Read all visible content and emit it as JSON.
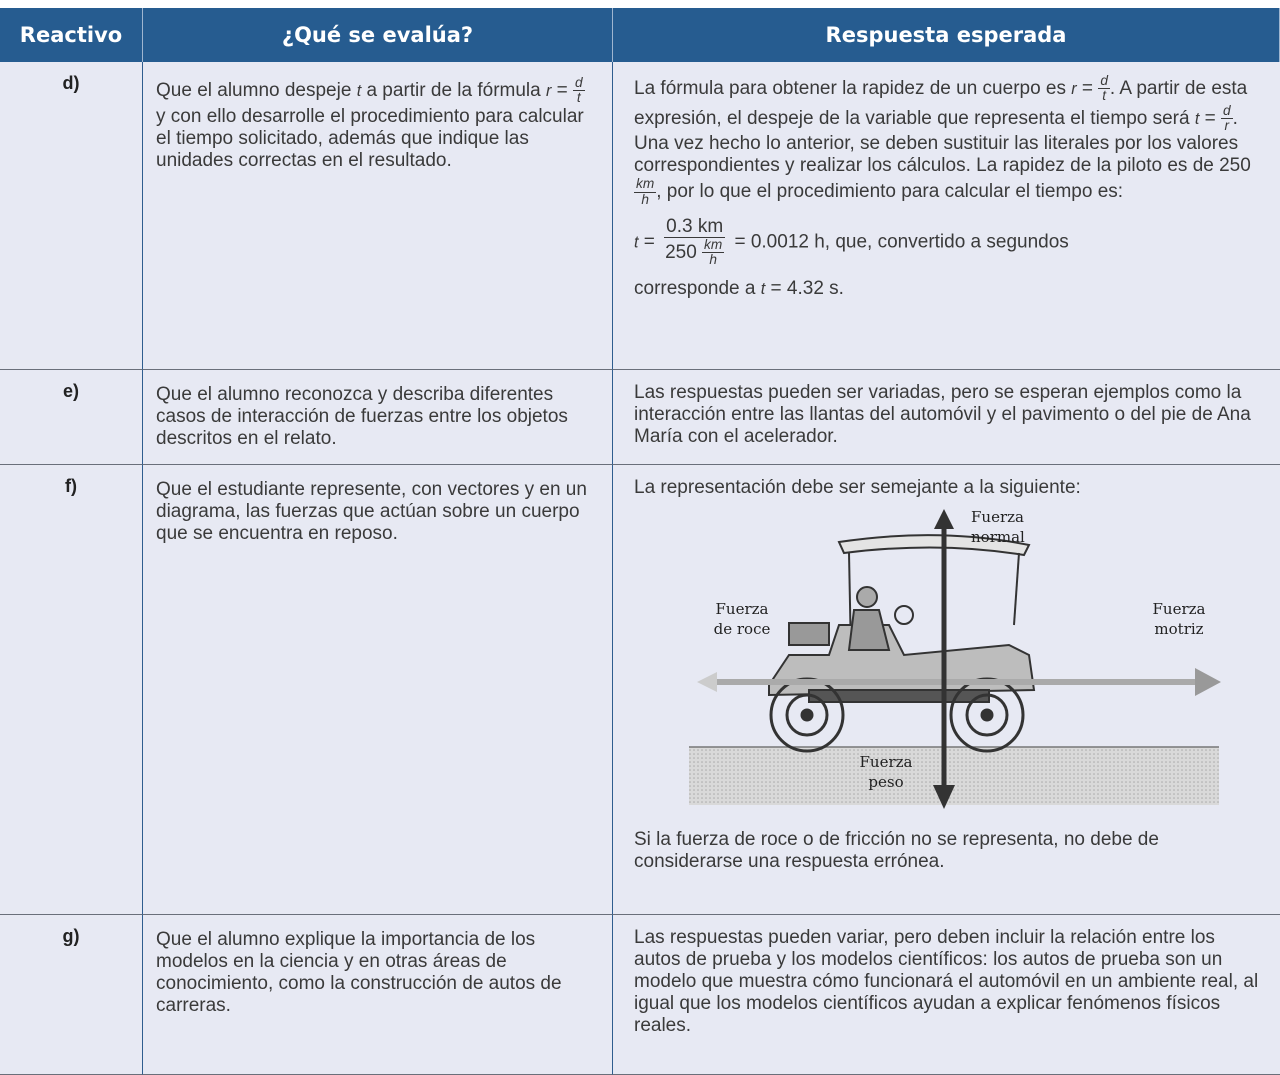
{
  "table": {
    "headers": [
      "Reactivo",
      "¿Qué se evalúa?",
      "Respuesta esperada"
    ],
    "rows": [
      {
        "id": "d)",
        "evaluates": [
          [
            "Que el alumno despeje ",
            {
              "i": "t"
            },
            " a partir de la fórmula ",
            {
              "i": "r"
            },
            " = ",
            {
              "num": "d",
              "den": "t"
            },
            " y con ello desarrolle el procedimiento para calcular el tiempo solicitado, además que indique las unidades correctas en  el resultado."
          ]
        ],
        "answer": [
          [
            "La fórmula para obtener la rapidez de un cuerpo es ",
            {
              "i": "r"
            },
            " = ",
            {
              "num": "d",
              "den": "t"
            },
            ". A partir de esta expresión, el despeje de la variable que representa el tiempo será ",
            {
              "i": "t"
            },
            " = ",
            {
              "num": "d",
              "den": "r"
            },
            ". Una vez hecho lo anterior, se deben sustituir las literales por los valores correspondientes y realizar los cálculos. La rapidez de la piloto es de 250",
            {
              "num": "km",
              "den": "h"
            },
            ", por lo que el procedimiento para calcular el tiempo es:"
          ],
          [
            {
              "i": "t"
            },
            " = ",
            {
              "num": "0.3 km",
              "den": [
                "250 ",
                {
                  "num": "km",
                  "den": "h"
                }
              ]
            },
            " = 0.0012 h, que, convertido a segundos"
          ],
          [
            "corresponde a ",
            {
              "i": "t"
            },
            " = 4.32 s."
          ]
        ]
      },
      {
        "id": "e)",
        "evaluates": [
          [
            "Que el alumno reconozca y describa diferentes casos de interacción de fuerzas entre los objetos descritos en el relato."
          ]
        ],
        "answer": [
          [
            "Las respuestas pueden ser variadas, pero se esperan ejemplos como la interacción entre las llantas del automóvil y el pavimento o del pie de Ana María con el acelerador."
          ]
        ]
      },
      {
        "id": "f)",
        "evaluates": [
          [
            "Que el estudiante represente, con vectores y en un diagrama, las fuerzas que actúan sobre un cuerpo que se encuentra en reposo."
          ]
        ],
        "answer": [
          [
            "La representación debe ser semejante a la siguiente:"
          ],
          {
            "figure": {
              "normal": [
                "Fuerza",
                "normal"
              ],
              "roce": [
                "Fuerza",
                "de roce"
              ],
              "motriz": [
                "Fuerza",
                "motriz"
              ],
              "peso": [
                "Fuerza",
                "peso"
              ]
            }
          },
          [
            "Si la fuerza de roce o de fricción no se representa, no debe de considerarse una respuesta errónea."
          ]
        ]
      },
      {
        "id": "g)",
        "evaluates": [
          [
            "Que el alumno explique la importancia de los modelos en la ciencia y en otras áreas de conocimiento, como la construcción de autos de carreras."
          ]
        ],
        "answer": [
          [
            "Las respuestas pueden variar, pero deben incluir la relación entre los autos de prueba y los modelos científicos: los autos de prueba son un modelo que muestra cómo funcionará el automóvil en un ambiente real, al igual que los modelos científicos ayudan a explicar fenómenos físicos reales."
          ]
        ]
      }
    ]
  }
}
